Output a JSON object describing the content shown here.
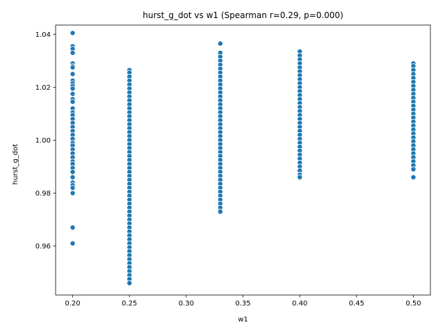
{
  "chart_data": {
    "type": "scatter",
    "title": "hurst_g_dot vs w1 (Spearman r=0.29, p=0.000)",
    "xlabel": "w1",
    "ylabel": "hurst_g_dot",
    "xlim": [
      0.185,
      0.515
    ],
    "ylim": [
      0.9415,
      1.0435
    ],
    "xticks": [
      "0.20",
      "0.25",
      "0.30",
      "0.35",
      "0.40",
      "0.45",
      "0.50"
    ],
    "yticks": [
      "0.96",
      "0.98",
      "1.00",
      "1.02",
      "1.04"
    ],
    "grid": false,
    "point_color": "#1f77b4",
    "series": [
      {
        "x": 0.2,
        "y": [
          1.0405,
          1.0355,
          1.0345,
          1.033,
          1.029,
          1.028,
          1.0275,
          1.025,
          1.0225,
          1.0215,
          1.0205,
          1.0195,
          1.0175,
          1.0155,
          1.0145,
          1.012,
          1.0105,
          1.0095,
          1.008,
          1.0065,
          1.005,
          1.0035,
          1.002,
          1.0005,
          0.999,
          0.998,
          0.9965,
          0.995,
          0.9935,
          0.992,
          0.991,
          0.9895,
          0.988,
          0.986,
          0.984,
          0.983,
          0.982,
          0.98,
          0.967,
          0.961
        ]
      },
      {
        "x": 0.25,
        "y": [
          1.0265,
          1.0255,
          1.024,
          1.0225,
          1.021,
          1.0195,
          1.018,
          1.0165,
          1.015,
          1.0135,
          1.012,
          1.0105,
          1.009,
          1.0075,
          1.006,
          1.0045,
          1.003,
          1.0015,
          1.0,
          0.9985,
          0.997,
          0.9955,
          0.994,
          0.9925,
          0.991,
          0.9895,
          0.988,
          0.9865,
          0.985,
          0.9835,
          0.982,
          0.9805,
          0.979,
          0.9775,
          0.976,
          0.9745,
          0.973,
          0.9715,
          0.97,
          0.9685,
          0.967,
          0.9655,
          0.964,
          0.9625,
          0.961,
          0.9595,
          0.958,
          0.9565,
          0.955,
          0.9535,
          0.952,
          0.9505,
          0.949,
          0.9475,
          0.946
        ]
      },
      {
        "x": 0.33,
        "y": [
          1.0365,
          1.033,
          1.0315,
          1.03,
          1.0285,
          1.027,
          1.0255,
          1.024,
          1.0225,
          1.021,
          1.0195,
          1.018,
          1.0165,
          1.015,
          1.0135,
          1.012,
          1.0105,
          1.009,
          1.0075,
          1.006,
          1.0045,
          1.003,
          1.0015,
          1.0,
          0.9985,
          0.997,
          0.9955,
          0.994,
          0.9925,
          0.991,
          0.9895,
          0.988,
          0.9865,
          0.985,
          0.9835,
          0.982,
          0.9805,
          0.979,
          0.9775,
          0.976,
          0.9745,
          0.973
        ]
      },
      {
        "x": 0.4,
        "y": [
          1.0335,
          1.032,
          1.0305,
          1.029,
          1.0275,
          1.026,
          1.0245,
          1.023,
          1.0215,
          1.02,
          1.0185,
          1.017,
          1.0155,
          1.014,
          1.0125,
          1.011,
          1.0095,
          1.008,
          1.0065,
          1.005,
          1.0035,
          1.002,
          1.0005,
          0.999,
          0.9975,
          0.996,
          0.9945,
          0.993,
          0.9915,
          0.99,
          0.9885,
          0.987,
          0.986
        ]
      },
      {
        "x": 0.5,
        "y": [
          1.029,
          1.028,
          1.0265,
          1.025,
          1.0235,
          1.022,
          1.0205,
          1.019,
          1.0175,
          1.016,
          1.0145,
          1.013,
          1.0115,
          1.01,
          1.0085,
          1.007,
          1.0055,
          1.004,
          1.0025,
          1.001,
          0.9995,
          0.998,
          0.9965,
          0.995,
          0.9935,
          0.992,
          0.9905,
          0.989,
          0.986
        ]
      }
    ]
  }
}
